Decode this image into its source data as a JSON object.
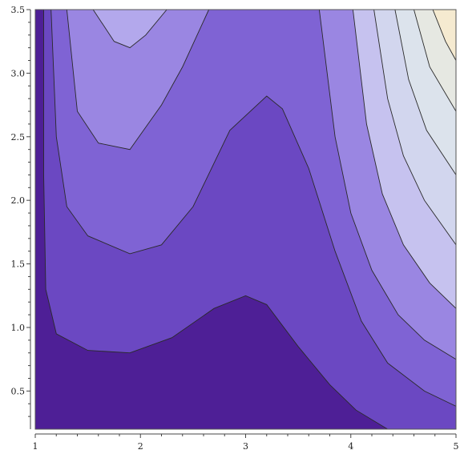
{
  "chart_data": {
    "type": "contour",
    "title": "",
    "xlabel": "",
    "ylabel": "",
    "xlim": [
      1,
      5
    ],
    "ylim": [
      0.2,
      3.5
    ],
    "x_ticks": [
      {
        "value": 1,
        "label": "1"
      },
      {
        "value": 2,
        "label": "2"
      },
      {
        "value": 3,
        "label": "3"
      },
      {
        "value": 4,
        "label": "4"
      },
      {
        "value": 5,
        "label": "5"
      }
    ],
    "y_ticks": [
      {
        "value": 0.5,
        "label": "0.5"
      },
      {
        "value": 1.0,
        "label": "1.0"
      },
      {
        "value": 1.5,
        "label": "1.5"
      },
      {
        "value": 2.0,
        "label": "2.0"
      },
      {
        "value": 2.5,
        "label": "2.5"
      },
      {
        "value": 3.0,
        "label": "3.0"
      },
      {
        "value": 3.5,
        "label": "3.5"
      }
    ],
    "grid": false,
    "legend": "none",
    "contour_lines": [
      [
        [
          1.08,
          3.5
        ],
        [
          1.08,
          2.2
        ],
        [
          1.1,
          1.3
        ],
        [
          1.2,
          0.95
        ],
        [
          1.5,
          0.82
        ],
        [
          1.9,
          0.8
        ],
        [
          2.3,
          0.92
        ],
        [
          2.7,
          1.15
        ],
        [
          3.0,
          1.25
        ],
        [
          3.2,
          1.18
        ],
        [
          3.5,
          0.85
        ],
        [
          3.8,
          0.55
        ],
        [
          4.05,
          0.35
        ],
        [
          4.35,
          0.2
        ]
      ],
      [
        [
          1.15,
          3.5
        ],
        [
          1.2,
          2.5
        ],
        [
          1.3,
          1.95
        ],
        [
          1.5,
          1.72
        ],
        [
          1.9,
          1.58
        ],
        [
          2.2,
          1.65
        ],
        [
          2.5,
          1.95
        ],
        [
          2.85,
          2.55
        ],
        [
          3.2,
          2.82
        ],
        [
          3.35,
          2.72
        ],
        [
          3.6,
          2.25
        ],
        [
          3.85,
          1.6
        ],
        [
          4.1,
          1.05
        ],
        [
          4.35,
          0.72
        ],
        [
          4.7,
          0.5
        ],
        [
          5.0,
          0.38
        ]
      ],
      [
        [
          1.3,
          3.5
        ],
        [
          1.4,
          2.7
        ],
        [
          1.6,
          2.45
        ],
        [
          1.9,
          2.4
        ],
        [
          2.2,
          2.75
        ],
        [
          2.4,
          3.05
        ],
        [
          2.65,
          3.5
        ]
      ],
      [
        [
          1.55,
          3.5
        ],
        [
          1.75,
          3.25
        ],
        [
          1.9,
          3.2
        ],
        [
          2.05,
          3.3
        ],
        [
          2.25,
          3.5
        ]
      ],
      [
        [
          3.7,
          3.5
        ],
        [
          3.85,
          2.5
        ],
        [
          4.0,
          1.9
        ],
        [
          4.2,
          1.45
        ],
        [
          4.45,
          1.1
        ],
        [
          4.7,
          0.9
        ],
        [
          5.0,
          0.75
        ]
      ],
      [
        [
          4.02,
          3.5
        ],
        [
          4.15,
          2.6
        ],
        [
          4.3,
          2.05
        ],
        [
          4.5,
          1.65
        ],
        [
          4.75,
          1.35
        ],
        [
          5.0,
          1.15
        ]
      ],
      [
        [
          4.22,
          3.5
        ],
        [
          4.35,
          2.8
        ],
        [
          4.5,
          2.35
        ],
        [
          4.7,
          2.0
        ],
        [
          5.0,
          1.65
        ]
      ],
      [
        [
          4.42,
          3.5
        ],
        [
          4.55,
          2.95
        ],
        [
          4.72,
          2.55
        ],
        [
          5.0,
          2.2
        ]
      ],
      [
        [
          4.6,
          3.5
        ],
        [
          4.75,
          3.05
        ],
        [
          5.0,
          2.7
        ]
      ],
      [
        [
          4.78,
          3.5
        ],
        [
          4.9,
          3.25
        ],
        [
          5.0,
          3.1
        ]
      ]
    ],
    "fill_colors": {
      "darkest": "#4e1f96",
      "level1": "#6b48c2",
      "level2": "#7f63d4",
      "level3": "#9a86e2",
      "level4": "#b3a8ec",
      "level5": "#c6c2ef",
      "level6": "#d2d6ee",
      "level7": "#dce3ec",
      "level8": "#e6e8e2",
      "level9": "#efe9d6",
      "level10": "#f5ead0"
    }
  }
}
